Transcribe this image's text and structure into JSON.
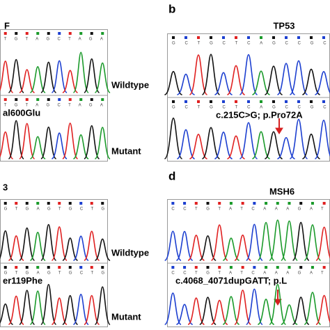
{
  "panels": [
    {
      "title": "F",
      "traces": [
        {
          "sequence": "TGTAGCTAGA",
          "label": "Wildtype"
        },
        {
          "sequence": "TGTAGCTAGA",
          "label": "Mutant",
          "annotation": "al600Glu"
        }
      ]
    },
    {
      "letter": "b",
      "title": "TP53",
      "traces": [
        {
          "sequence": "GCTGCTCAGCCGC"
        },
        {
          "sequence": "GCTGCTCAGCCGC",
          "annotation": "c.215C>G; p.Pro72A"
        }
      ]
    },
    {
      "title": "3",
      "traces": [
        {
          "sequence": "GTGAGTGCTG",
          "label": "Wildtype"
        },
        {
          "sequence": "GTGAGTGCTG",
          "label": "Mutant",
          "annotation": "er119Phe"
        }
      ]
    },
    {
      "letter": "d",
      "title": "MSH6",
      "traces": [
        {
          "sequence": "CCTGTATCAAAGAT"
        },
        {
          "sequence": "CCTGTATCAAAGAT",
          "annotation": "c.4068_4071dupGATT; p.L"
        }
      ]
    }
  ]
}
